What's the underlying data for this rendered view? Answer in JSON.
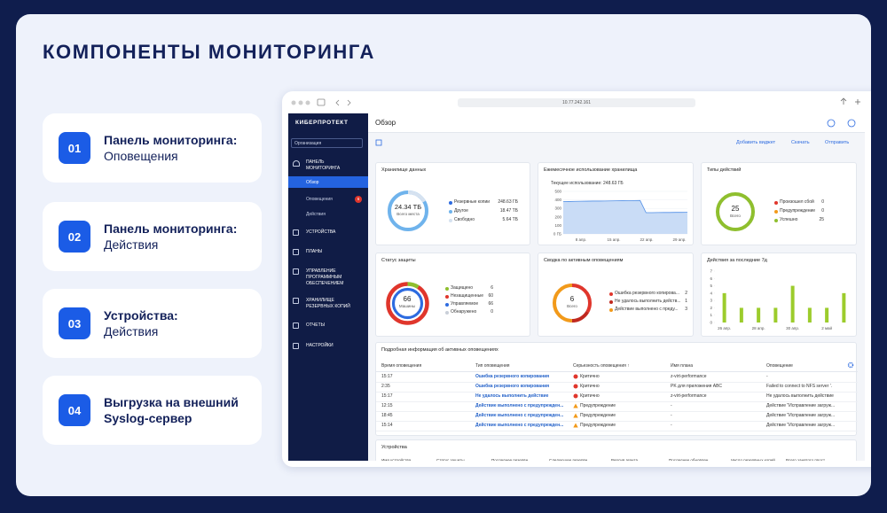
{
  "header": {
    "title": "КОМПОНЕНТЫ МОНИТОРИНГА"
  },
  "features": [
    {
      "number": "01",
      "title": "Панель мониторинга:",
      "subtitle": "Оповещения"
    },
    {
      "number": "02",
      "title": "Панель мониторинга:",
      "subtitle": "Действия"
    },
    {
      "number": "03",
      "title": "Устройства:",
      "subtitle": "Действия"
    },
    {
      "number": "04",
      "title": "Выгрузка на внешний",
      "subtitle": "Syslog-сервер"
    }
  ],
  "browser": {
    "url": "10.77.242.161"
  },
  "sidebar": {
    "brand": "КИБЕРПРОТЕКТ",
    "organization": "Организация",
    "section": "ПАНЕЛЬ МОНИТОРИНГА",
    "subitems": [
      "Обзор",
      "Оповещения",
      "Действия"
    ],
    "alerts_badge": 6,
    "items": [
      "УСТРОЙСТВА",
      "ПЛАНЫ",
      "УПРАВЛЕНИЕ ПРОГРАММНЫМ ОБЕСПЕЧЕНИЕМ",
      "ХРАНИЛИЩЕ РЕЗЕРВНЫХ КОПИЙ",
      "ОТЧЕТЫ",
      "НАСТРОЙКИ"
    ]
  },
  "page": {
    "title": "Обзор",
    "actions": [
      "Добавить виджет",
      "Скачать",
      "Отправить"
    ]
  },
  "widgets": {
    "storage": {
      "title": "Хранилище данных",
      "center_value": "24.34 ТБ",
      "center_label": "Всего места",
      "legend": [
        {
          "name": "Резервные копии",
          "value": "248.63 ГБ",
          "color": "#2d6be0"
        },
        {
          "name": "Другое",
          "value": "18.47 ТБ",
          "color": "#6fb3ec"
        },
        {
          "name": "Свободно",
          "value": "5.64 ТБ",
          "color": "#d6e2f0"
        }
      ]
    },
    "monthly": {
      "title": "Ежемесячное использование хранилища",
      "caption": "Текущее использование: 248.63 ГБ",
      "ylim": [
        0,
        500
      ],
      "yticks": [
        {
          "value": 0,
          "label": "0 ГБ"
        },
        100,
        200,
        300,
        400,
        500
      ],
      "x_labels": [
        "8 апр.",
        "15 апр.",
        "22 апр.",
        "29 апр."
      ],
      "values": [
        380,
        381,
        383,
        384,
        385,
        386,
        386,
        387,
        388,
        389,
        390,
        391,
        392,
        393,
        250,
        250,
        251,
        252,
        252,
        253,
        253,
        254
      ],
      "color": "#4f8ee6"
    },
    "action_types": {
      "title": "Типы действий",
      "total": 25,
      "total_label": "Всего",
      "legend": [
        {
          "name": "Произошел сбой",
          "value": 0,
          "color": "#e0362c"
        },
        {
          "name": "Предупреждение",
          "value": 0,
          "color": "#f29a1a"
        },
        {
          "name": "Успешно",
          "value": 25,
          "color": "#8fbf2e"
        }
      ]
    },
    "protection": {
      "title": "Статус защиты",
      "total": 66,
      "total_label": "Машины",
      "legend": [
        {
          "name": "Защищено",
          "value": 6,
          "color": "#8fbf2e"
        },
        {
          "name": "Незащищенные",
          "value": 60,
          "color": "#e0362c"
        },
        {
          "name": "Управляемое",
          "value": 66,
          "color": "#2d6be0"
        },
        {
          "name": "Обнаружено",
          "value": 0,
          "color": "#c9cfd8"
        }
      ]
    },
    "alerts_summary": {
      "title": "Сводка по активным оповещениям",
      "total": 6,
      "total_label": "Всего",
      "legend": [
        {
          "name": "Ошибка резервного копирова...",
          "value": 2,
          "color": "#e0362c"
        },
        {
          "name": "Не удалось выполнить действ...",
          "value": 1,
          "color": "#c0281f"
        },
        {
          "name": "Действие выполнено с преду...",
          "value": 3,
          "color": "#f29a1a"
        }
      ]
    },
    "actions_7d": {
      "title": "Действия за последние 7д",
      "ylim": [
        0,
        7
      ],
      "yticks": [
        0,
        1,
        2,
        3,
        4,
        5,
        6,
        7
      ],
      "categories": [
        "26 апр.",
        null,
        "28 апр.",
        null,
        "30 апр.",
        null,
        "2 май",
        null
      ],
      "values": [
        4,
        2,
        2,
        2,
        5,
        2,
        2,
        4
      ],
      "color": "#9ccc2c"
    },
    "alerts_table": {
      "title": "Подробная информация об активных оповещениях",
      "columns": [
        "Время оповещения",
        "Тип оповещения",
        "Серьезность оповещения ↑",
        "Имя плана",
        "Оповещение"
      ],
      "rows": [
        [
          "15:17",
          "Ошибка резервного копирования",
          "Критично",
          "z-virt-performance",
          "-"
        ],
        [
          "2:35",
          "Ошибка резервного копирования",
          "Критично",
          "PK для приложения ABC",
          "Failed to connect to NFS server '."
        ],
        [
          "15:17",
          "Не удалось выполнить действие",
          "Критично",
          "z-virt-performance",
          "Не удалось выполнить действие"
        ],
        [
          "12:15",
          "Действие выполнено с предупрежден...",
          "Предупреждение",
          "-",
          "Действие \"Исправление загруж..."
        ],
        [
          "18:45",
          "Действие выполнено с предупрежден...",
          "Предупреждение",
          "-",
          "Действие \"Исправление загруж..."
        ],
        [
          "15:14",
          "Действие выполнено с предупрежден...",
          "Предупреждение",
          "-",
          "Действие \"Исправление загруж..."
        ]
      ]
    },
    "devices": {
      "title": "Устройства",
      "columns": [
        "Имя устройства",
        "Статус защиты",
        "Последнее резервн...",
        "Следующее резервн...",
        "Версия агента",
        "Последнее обновлен...",
        "Число резервных копий",
        "Всего занятого прост..."
      ]
    }
  }
}
